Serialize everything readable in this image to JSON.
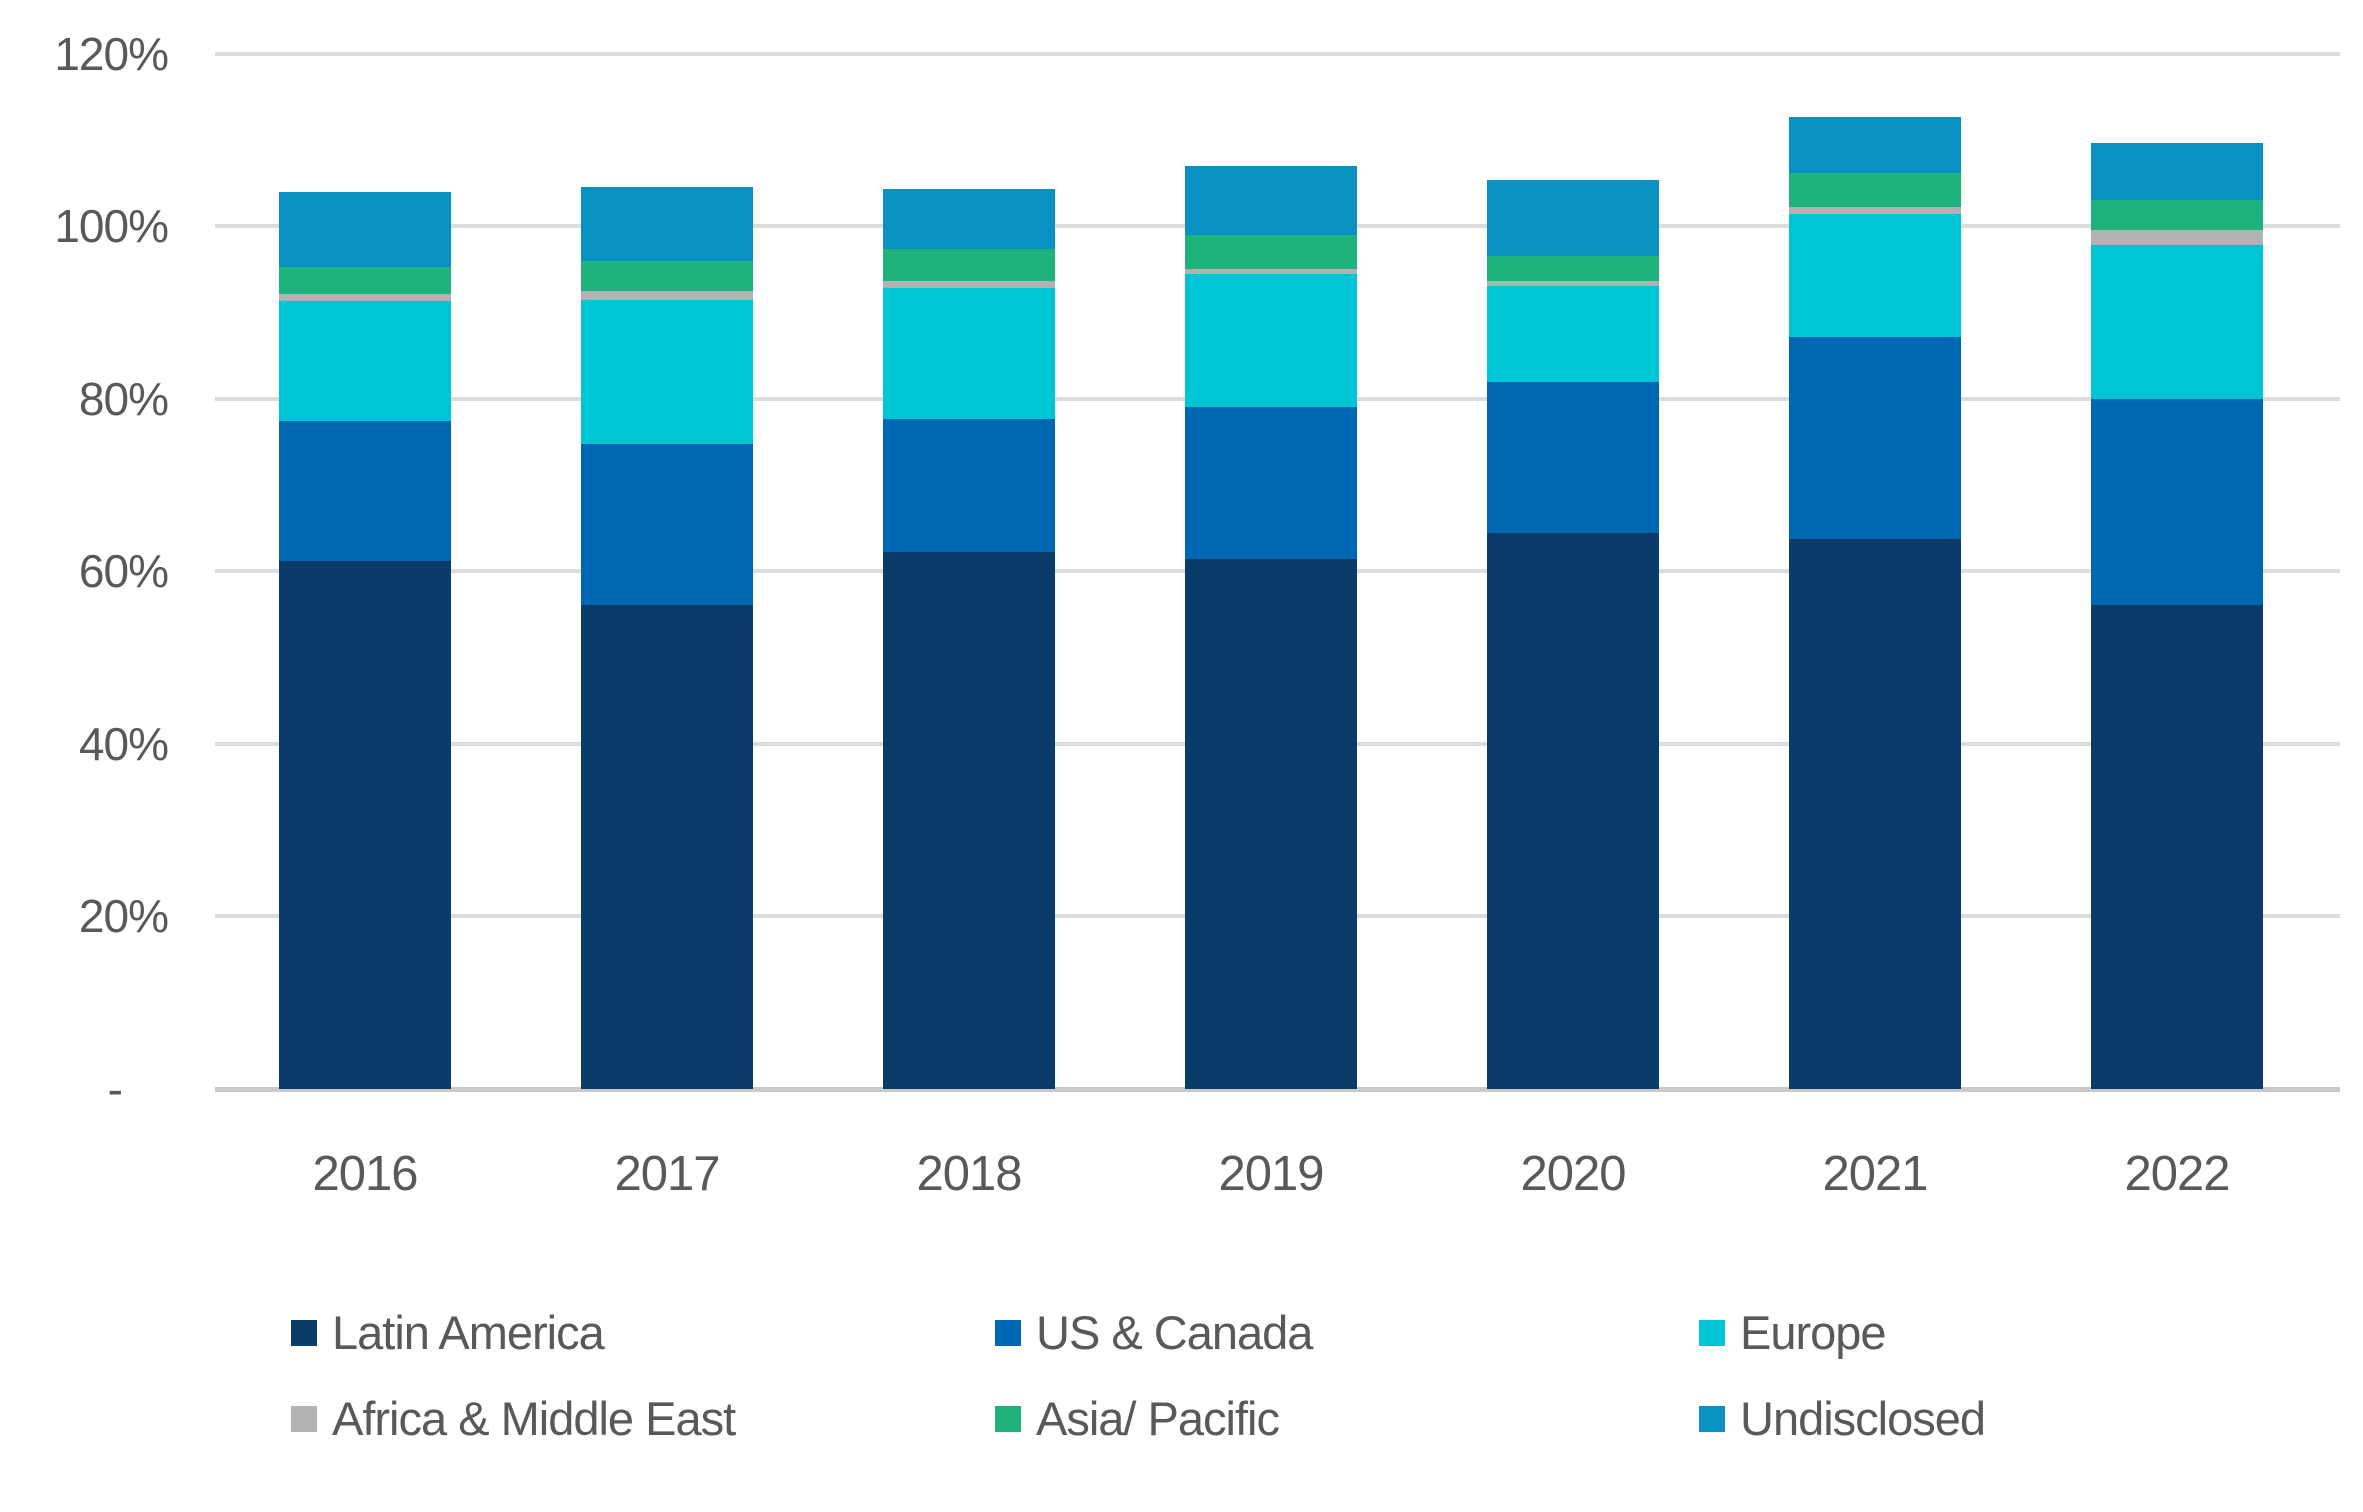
{
  "chart_data": {
    "type": "bar",
    "stacked": true,
    "title": "",
    "xlabel": "",
    "ylabel": "",
    "categories": [
      "2016",
      "2017",
      "2018",
      "2019",
      "2020",
      "2021",
      "2022"
    ],
    "series": [
      {
        "name": "Latin America",
        "color": "#0b3b68",
        "values": [
          61.2,
          56.1,
          62.2,
          61.4,
          64.5,
          63.8,
          56.1
        ]
      },
      {
        "name": "US & Canada",
        "color": "#0067b2",
        "values": [
          16.2,
          18.7,
          15.4,
          17.6,
          17.4,
          23.4,
          23.9
        ]
      },
      {
        "name": "Europe",
        "color": "#00c5d4",
        "values": [
          13.9,
          16.7,
          15.2,
          15.5,
          11.2,
          14.2,
          17.8
        ]
      },
      {
        "name": "Africa & Middle East",
        "color": "#b1b3b3",
        "values": [
          0.9,
          1.0,
          0.8,
          0.5,
          0.6,
          0.8,
          1.8
        ]
      },
      {
        "name": "Asia/ Pacific",
        "color": "#1eb27c",
        "values": [
          3.1,
          3.5,
          3.8,
          4.0,
          2.8,
          4.0,
          3.4
        ]
      },
      {
        "name": "Undisclosed",
        "color": "#0991c2",
        "values": [
          8.7,
          8.5,
          6.9,
          8.0,
          8.9,
          6.5,
          6.7
        ]
      }
    ],
    "stack_totals": [
      104.0,
      104.5,
      104.3,
      107.0,
      105.4,
      112.7,
      109.7
    ],
    "ylim": [
      0,
      120
    ],
    "ytick_values": [
      0,
      20,
      40,
      60,
      80,
      100,
      120
    ],
    "ytick_labels": [
      "-",
      "20%",
      "40%",
      "60%",
      "80%",
      "100%",
      "120%"
    ],
    "grid": "horizontal",
    "legend_position": "bottom",
    "legend_rows": [
      [
        "Latin America",
        "US & Canada",
        "Europe"
      ],
      [
        "Africa & Middle East",
        "Asia/ Pacific",
        "Undisclosed"
      ]
    ]
  },
  "colors": {
    "background": "#ffffff",
    "gridline": "#dcdcdc",
    "axis_line": "#c8c8c8",
    "text": "#595959"
  }
}
